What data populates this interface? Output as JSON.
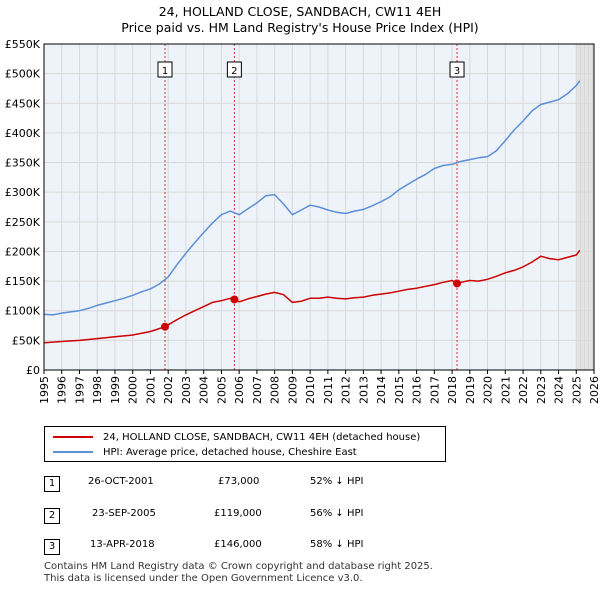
{
  "header": {
    "title": "24, HOLLAND CLOSE, SANDBACH, CW11 4EH",
    "subtitle": "Price paid vs. HM Land Registry's House Price Index (HPI)"
  },
  "legend": {
    "items": [
      {
        "label": "24, HOLLAND CLOSE, SANDBACH, CW11 4EH (detached house)",
        "color": "#cc0000"
      },
      {
        "label": "HPI: Average price, detached house, Cheshire East",
        "color": "#5b8fd6"
      }
    ]
  },
  "transactions": [
    {
      "num": "1",
      "date": "26-OCT-2001",
      "price": "£73,000",
      "hpi": "52% ↓ HPI"
    },
    {
      "num": "2",
      "date": "23-SEP-2005",
      "price": "£119,000",
      "hpi": "56% ↓ HPI"
    },
    {
      "num": "3",
      "date": "13-APR-2018",
      "price": "£146,000",
      "hpi": "58% ↓ HPI"
    }
  ],
  "footer": {
    "line1": "Contains HM Land Registry data © Crown copyright and database right 2025.",
    "line2": "This data is licensed under the Open Government Licence v3.0."
  },
  "chart_data": {
    "type": "line",
    "x_range": [
      1995,
      2026
    ],
    "ylim": [
      0,
      550000
    ],
    "y_ticks": [
      0,
      50000,
      100000,
      150000,
      200000,
      250000,
      300000,
      350000,
      400000,
      450000,
      500000,
      550000
    ],
    "y_tick_labels": [
      "£0",
      "£50K",
      "£100K",
      "£150K",
      "£200K",
      "£250K",
      "£300K",
      "£350K",
      "£400K",
      "£450K",
      "£500K",
      "£550K"
    ],
    "x_ticks": [
      "1995",
      "1996",
      "1997",
      "1998",
      "1999",
      "2000",
      "2001",
      "2002",
      "2003",
      "2004",
      "2005",
      "2006",
      "2007",
      "2008",
      "2009",
      "2010",
      "2011",
      "2012",
      "2013",
      "2014",
      "2015",
      "2016",
      "2017",
      "2018",
      "2019",
      "2020",
      "2021",
      "2022",
      "2023",
      "2024",
      "2025",
      "2026"
    ],
    "grid": true,
    "shaded_region_after": 2025.0,
    "colors": {
      "property": "#cc0000",
      "hpi": "#5b8fd6",
      "marker_line": "#cc0000",
      "grid": "#d8d8d8",
      "plot_bg": "#eef3fa"
    },
    "series": [
      {
        "name": "24, HOLLAND CLOSE, SANDBACH, CW11 4EH (detached house)",
        "color": "#cc0000",
        "x": [
          1995.0,
          1996.0,
          1997.0,
          1998.0,
          1999.0,
          2000.0,
          2001.0,
          2001.82,
          2002.5,
          2003.0,
          2003.5,
          2004.0,
          2004.5,
          2005.0,
          2005.5,
          2005.73,
          2006.0,
          2006.5,
          2007.0,
          2007.5,
          2008.0,
          2008.5,
          2009.0,
          2009.5,
          2010.0,
          2010.5,
          2011.0,
          2011.5,
          2012.0,
          2012.5,
          2013.0,
          2013.5,
          2014.0,
          2014.5,
          2015.0,
          2015.5,
          2016.0,
          2016.5,
          2017.0,
          2017.5,
          2018.0,
          2018.28,
          2018.5,
          2019.0,
          2019.5,
          2020.0,
          2020.5,
          2021.0,
          2021.5,
          2022.0,
          2022.5,
          2023.0,
          2023.5,
          2024.0,
          2024.5,
          2025.0,
          2025.2
        ],
        "values": [
          46000,
          48000,
          50000,
          53000,
          56000,
          59000,
          65000,
          73000,
          85000,
          93000,
          100000,
          107000,
          114000,
          117000,
          121000,
          119000,
          115000,
          120000,
          124000,
          128000,
          131000,
          127000,
          114000,
          116000,
          121000,
          121000,
          123000,
          121000,
          120000,
          122000,
          123000,
          126000,
          128000,
          130000,
          133000,
          136000,
          138000,
          141000,
          144000,
          148000,
          151000,
          146000,
          148000,
          151000,
          150000,
          153000,
          158000,
          164000,
          168000,
          174000,
          182000,
          192000,
          188000,
          186000,
          190000,
          194000,
          202000
        ]
      },
      {
        "name": "HPI: Average price, detached house, Cheshire East",
        "color": "#5b8fd6",
        "x": [
          1995.0,
          1995.5,
          1996.0,
          1996.5,
          1997.0,
          1997.5,
          1998.0,
          1998.5,
          1999.0,
          1999.5,
          2000.0,
          2000.5,
          2001.0,
          2001.5,
          2002.0,
          2002.5,
          2003.0,
          2003.5,
          2004.0,
          2004.5,
          2005.0,
          2005.5,
          2006.0,
          2006.5,
          2007.0,
          2007.5,
          2008.0,
          2008.5,
          2009.0,
          2009.5,
          2010.0,
          2010.5,
          2011.0,
          2011.5,
          2012.0,
          2012.5,
          2013.0,
          2013.5,
          2014.0,
          2014.5,
          2015.0,
          2015.5,
          2016.0,
          2016.5,
          2017.0,
          2017.5,
          2018.0,
          2018.5,
          2019.0,
          2019.5,
          2020.0,
          2020.5,
          2021.0,
          2021.5,
          2022.0,
          2022.5,
          2023.0,
          2023.5,
          2024.0,
          2024.5,
          2025.0,
          2025.2
        ],
        "values": [
          94000,
          93000,
          96000,
          98000,
          100000,
          104000,
          109000,
          113000,
          117000,
          121000,
          126000,
          132000,
          137000,
          145000,
          157000,
          178000,
          197000,
          215000,
          232000,
          248000,
          262000,
          268000,
          262000,
          272000,
          282000,
          294000,
          296000,
          280000,
          262000,
          270000,
          278000,
          275000,
          270000,
          266000,
          264000,
          268000,
          271000,
          277000,
          284000,
          292000,
          304000,
          313000,
          322000,
          330000,
          340000,
          345000,
          347000,
          352000,
          355000,
          358000,
          360000,
          370000,
          387000,
          405000,
          420000,
          437000,
          448000,
          452000,
          456000,
          466000,
          480000,
          488000
        ]
      }
    ],
    "markers": [
      {
        "num": "1",
        "x": 2001.82,
        "y": 73000
      },
      {
        "num": "2",
        "x": 2005.73,
        "y": 119000
      },
      {
        "num": "3",
        "x": 2018.28,
        "y": 146000
      }
    ]
  }
}
